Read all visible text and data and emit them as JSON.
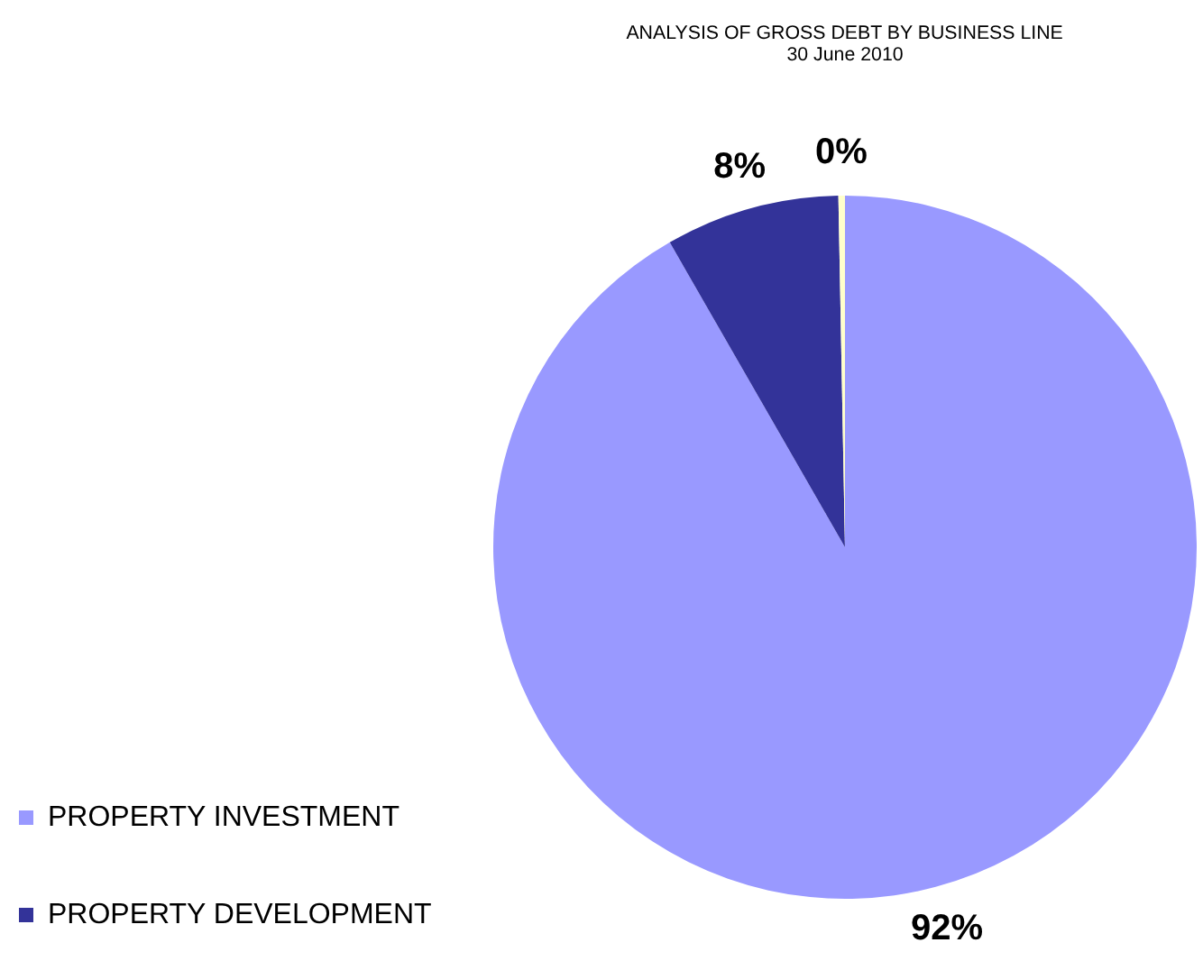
{
  "chart_data": {
    "type": "pie",
    "title": "ANALYSIS OF GROSS DEBT BY BUSINESS LINE",
    "subtitle": "30 June 2010",
    "categories": [
      "PROPERTY INVESTMENT",
      "PROPERTY DEVELOPMENT",
      null
    ],
    "values": [
      91.7,
      8.0,
      0.3
    ],
    "colors": [
      "#9999ff",
      "#333399",
      "#ffffcc"
    ],
    "value_labels": [
      "92%",
      "8%",
      "0%"
    ],
    "legend": "bottom left"
  }
}
